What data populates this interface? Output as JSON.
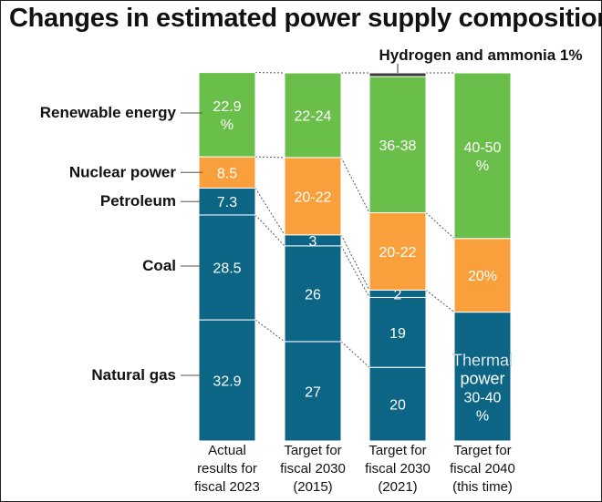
{
  "title": "Changes in estimated power supply composition",
  "chart_data": {
    "type": "bar",
    "stacked": true,
    "ylim": [
      0,
      100
    ],
    "categories": [
      [
        "Actual",
        "results for",
        "fiscal 2023"
      ],
      [
        "Target for",
        "fiscal 2030",
        "(2015)"
      ],
      [
        "Target for",
        "fiscal 2030",
        "(2021)"
      ],
      [
        "Target for",
        "fiscal 2040",
        "(this time)"
      ]
    ],
    "row_labels": [
      "Renewable energy",
      "Nuclear power",
      "Petroleum",
      "Coal",
      "Natural gas"
    ],
    "annotation": "Hydrogen and ammonia 1%",
    "colors": {
      "renewable": "#6abf4b",
      "nuclear": "#f9a03c",
      "thermal": "#0d6585",
      "hydrogen": "#3a3a3a",
      "connector": "#555555"
    },
    "bars": [
      {
        "segments": [
          {
            "key": "natural_gas",
            "value": 32.9,
            "label": [
              "32.9"
            ],
            "color": "thermal"
          },
          {
            "key": "coal",
            "value": 28.5,
            "label": [
              "28.5"
            ],
            "color": "thermal"
          },
          {
            "key": "petroleum",
            "value": 7.3,
            "label": [
              "7.3"
            ],
            "color": "thermal"
          },
          {
            "key": "nuclear",
            "value": 8.5,
            "label": [
              "8.5"
            ],
            "color": "nuclear"
          },
          {
            "key": "renewable",
            "value": 22.9,
            "label": [
              "22.9",
              "%"
            ],
            "color": "renewable"
          }
        ]
      },
      {
        "segments": [
          {
            "key": "natural_gas",
            "value": 27,
            "label": [
              "27"
            ],
            "color": "thermal"
          },
          {
            "key": "coal",
            "value": 26,
            "label": [
              "26"
            ],
            "color": "thermal"
          },
          {
            "key": "petroleum",
            "value": 3,
            "label": [
              "3"
            ],
            "color": "thermal"
          },
          {
            "key": "nuclear",
            "value": 21,
            "label": [
              "20-22"
            ],
            "color": "nuclear"
          },
          {
            "key": "renewable",
            "value": 23,
            "label": [
              "22-24"
            ],
            "color": "renewable"
          }
        ]
      },
      {
        "segments": [
          {
            "key": "natural_gas",
            "value": 20,
            "label": [
              "20"
            ],
            "color": "thermal"
          },
          {
            "key": "coal",
            "value": 19,
            "label": [
              "19"
            ],
            "color": "thermal"
          },
          {
            "key": "petroleum",
            "value": 2,
            "label": [
              "2"
            ],
            "color": "thermal"
          },
          {
            "key": "nuclear",
            "value": 21,
            "label": [
              "20-22"
            ],
            "color": "nuclear"
          },
          {
            "key": "renewable",
            "value": 37,
            "label": [
              "36-38"
            ],
            "color": "renewable"
          },
          {
            "key": "hydrogen",
            "value": 1,
            "label": [],
            "color": "hydrogen"
          }
        ]
      },
      {
        "segments": [
          {
            "key": "thermal",
            "value": 35,
            "label": [
              "Thermal",
              "power",
              "30-40",
              "%"
            ],
            "color": "thermal"
          },
          {
            "key": "nuclear",
            "value": 20,
            "label": [
              "20%"
            ],
            "color": "nuclear"
          },
          {
            "key": "renewable",
            "value": 45,
            "label": [
              "40-50",
              "%"
            ],
            "color": "renewable"
          }
        ]
      }
    ]
  }
}
